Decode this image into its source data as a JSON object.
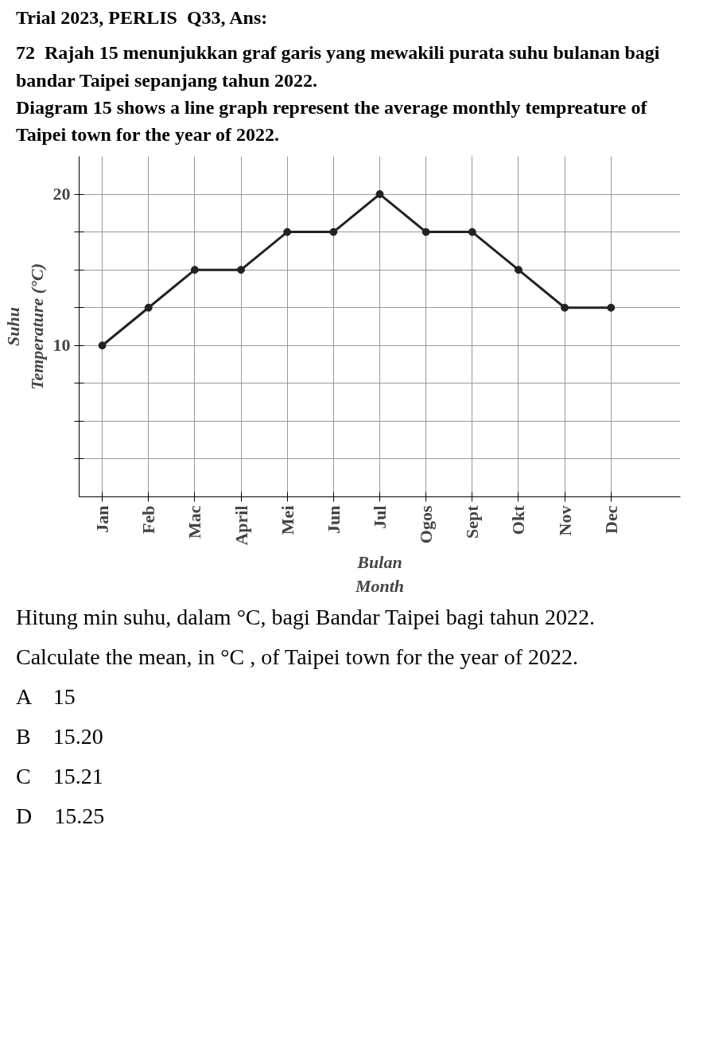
{
  "chart_data": {
    "type": "line",
    "title": "Trial 2023, PERLIS  Q33, Ans:",
    "subtitle": "72  Rajah 15 menunjukkan graf garis yang mewakili purata suhu bulanan bagi bandar Taipei sepanjang tahun 2022.\nDiagram 15 shows a line graph represent the average monthly tempreature of Taipei town for the year of 2022.",
    "ylabel": "Suhu\nTemperature (°C)",
    "xlabel": "Bulan\nMonth",
    "categories": [
      "Jan",
      "Feb",
      "Mac",
      "April",
      "Mei",
      "Jun",
      "Jul",
      "Ogos",
      "Sept",
      "Okt",
      "Nov",
      "Dec"
    ],
    "series": [
      {
        "color": "#222222",
        "values": [
          10,
          12.5,
          15,
          15,
          17.5,
          17.5,
          20,
          17.5,
          17.5,
          15,
          12.5,
          12.5
        ]
      }
    ],
    "ylim": [
      0,
      22.5
    ],
    "yticks": [
      {
        "value": 2.5,
        "label": null
      },
      {
        "value": 5,
        "label": null
      },
      {
        "value": 7.5,
        "label": null
      },
      10,
      {
        "value": 12.5,
        "label": null
      },
      {
        "value": 15,
        "label": null
      },
      {
        "value": 17.5,
        "label": null
      },
      20
    ],
    "grid": true,
    "marker": "circle",
    "line_style": "solid",
    "annotations": [
      "Hitung min suhu, dalam °C, bagi Bandar Taipei bagi tahun 2022.",
      "Calculate the mean, in °C , of Taipei town for the year of 2022.",
      "A    15",
      "B    15.20",
      "C    15.21",
      "D    15.25"
    ]
  }
}
